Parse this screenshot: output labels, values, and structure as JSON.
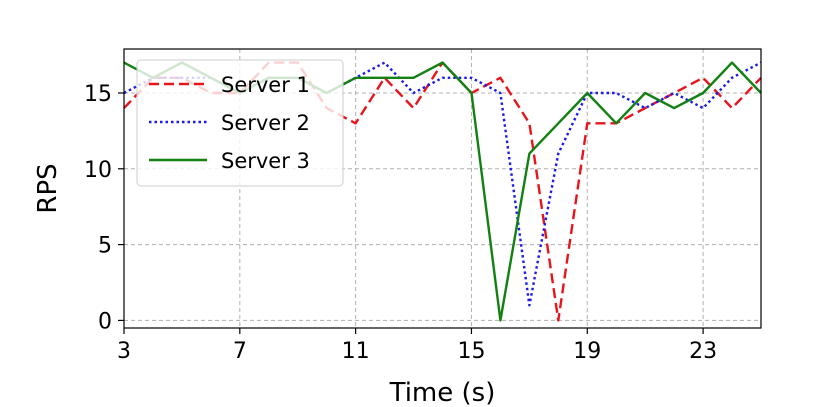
{
  "chart_data": {
    "type": "line",
    "xlabel": "Time (s)",
    "ylabel": "RPS",
    "xlim": [
      3,
      25
    ],
    "ylim": [
      -0.5,
      17.9
    ],
    "xticks": [
      3,
      7,
      11,
      15,
      19,
      23
    ],
    "yticks": [
      0,
      5,
      10,
      15
    ],
    "grid": true,
    "legend_position": "top-left",
    "x": [
      3,
      4,
      5,
      6,
      7,
      8,
      9,
      10,
      11,
      12,
      13,
      14,
      15,
      16,
      17,
      18,
      19,
      20,
      21,
      22,
      23,
      24,
      25
    ],
    "series": [
      {
        "name": "Server 1",
        "color": "#e8141c",
        "dash": "dashed",
        "values": [
          14,
          16,
          16,
          15,
          15,
          17,
          17,
          14,
          13,
          16,
          14,
          17,
          15,
          16,
          13,
          0,
          13,
          13,
          14,
          15,
          16,
          14,
          16
        ]
      },
      {
        "name": "Server 2",
        "color": "#1a1aee",
        "dash": "dotted",
        "values": [
          15,
          16,
          16,
          16,
          15,
          16,
          16,
          15,
          16,
          17,
          15,
          16,
          16,
          15,
          1,
          11,
          15,
          15,
          14,
          15,
          14,
          16,
          17
        ]
      },
      {
        "name": "Server 3",
        "color": "#128012",
        "dash": "solid",
        "values": [
          17,
          16,
          17,
          16,
          15,
          16,
          16,
          15,
          16,
          16,
          16,
          17,
          15,
          0,
          11,
          13,
          15,
          13,
          15,
          14,
          15,
          17,
          15
        ]
      }
    ]
  }
}
